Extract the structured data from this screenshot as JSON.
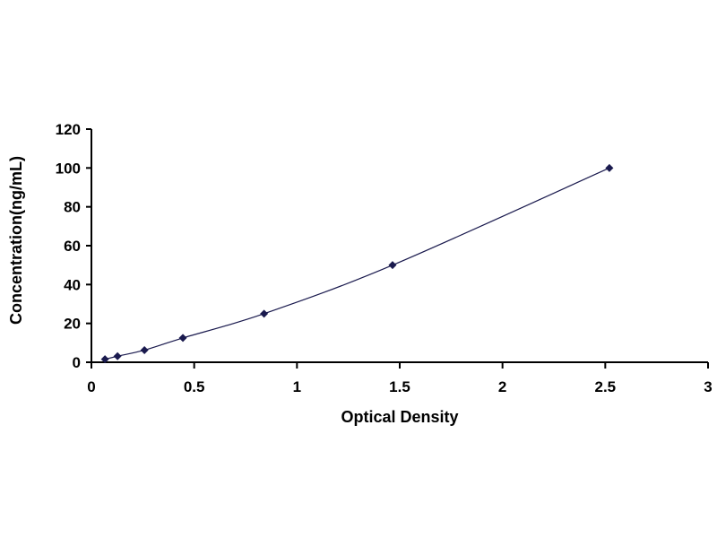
{
  "chart_data": {
    "type": "scatter",
    "title": "",
    "xlabel": "Optical Density",
    "ylabel": "Concentration(ng/mL)",
    "xlim": [
      0,
      3
    ],
    "ylim": [
      0,
      120
    ],
    "xticks": [
      "0",
      "0.5",
      "1",
      "1.5",
      "2",
      "2.5",
      "3"
    ],
    "yticks": [
      "0",
      "20",
      "40",
      "60",
      "80",
      "100",
      "120"
    ],
    "grid": false,
    "legend": "none",
    "series": [
      {
        "x": [
          0.066,
          0.127,
          0.258,
          0.445,
          0.84,
          1.465,
          2.52
        ],
        "y": [
          1.56,
          3.12,
          6.25,
          12.5,
          25,
          50,
          100
        ],
        "marker": "diamond",
        "line": "smooth",
        "color": "#1a1a4e"
      }
    ]
  }
}
